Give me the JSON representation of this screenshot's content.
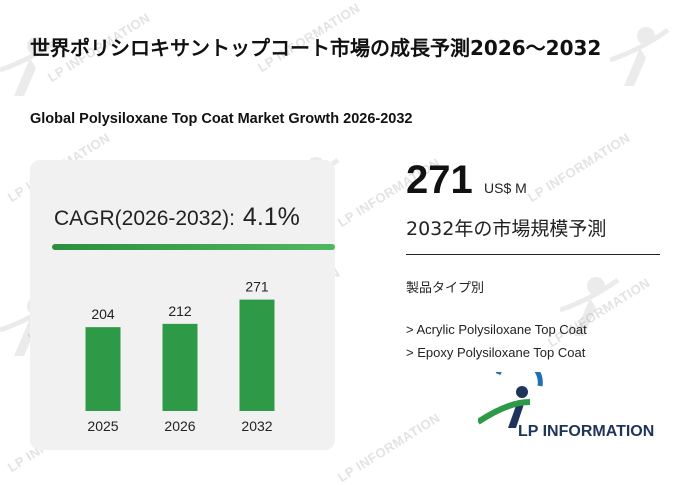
{
  "title_jp": "世界ポリシロキサントップコート市場の成長予測2026～2032",
  "title_en": "Global Polysiloxane Top Coat Market Growth 2026-2032",
  "cagr": {
    "label": "CAGR(2026-2032):",
    "value": "4.1%"
  },
  "market_size": {
    "value": "271",
    "unit": "US$ M",
    "caption": "2032年の市場規模予測"
  },
  "segment": {
    "heading": "製品タイプ別",
    "items": [
      "> Acrylic Polysiloxane Top Coat",
      "> Epoxy Polysiloxane Top Coat"
    ]
  },
  "brand": {
    "name": "LP INFORMATION"
  },
  "watermark_text": "LP INFORMATION",
  "colors": {
    "bar": "#2e9a47",
    "accent_green": "#2a8f3f",
    "brand_blue": "#1e3559"
  },
  "chart_data": {
    "type": "bar",
    "categories": [
      "2025",
      "2026",
      "2032"
    ],
    "values": [
      204,
      212,
      271
    ],
    "title": "",
    "xlabel": "",
    "ylabel": "",
    "ylim": [
      0,
      290
    ],
    "grid": false,
    "legend": "none"
  }
}
